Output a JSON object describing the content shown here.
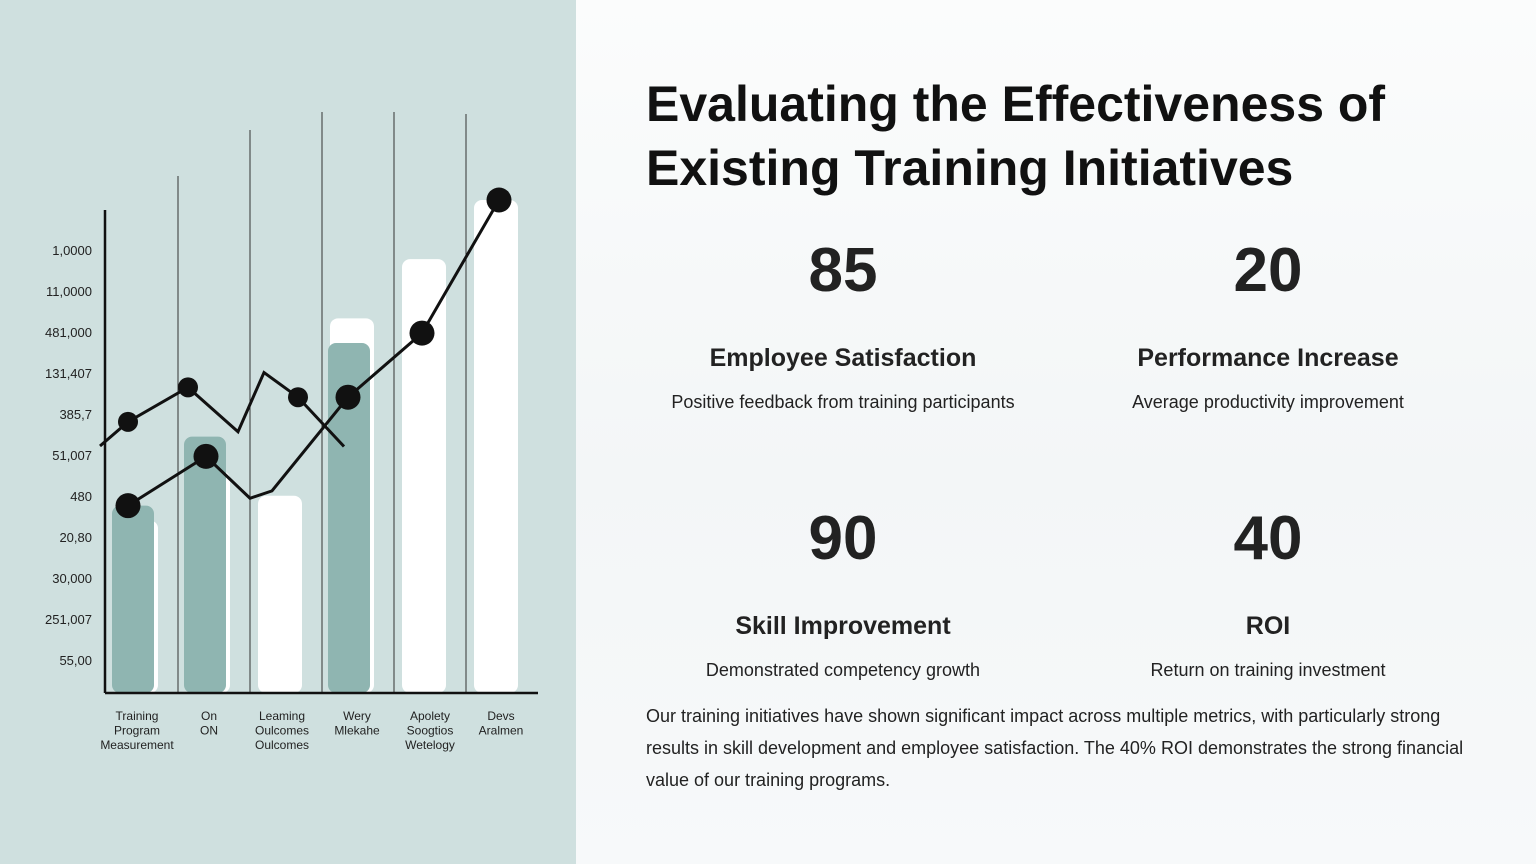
{
  "slide": {
    "title": "Evaluating the Effectiveness of Existing Training Initiatives",
    "stats": [
      {
        "value": "85",
        "label": "Employee Satisfaction",
        "description": "Positive feedback from training participants"
      },
      {
        "value": "20",
        "label": "Performance Increase",
        "description": "Average productivity improvement"
      },
      {
        "value": "90",
        "label": "Skill Improvement",
        "description": "Demonstrated competency growth"
      },
      {
        "value": "40",
        "label": "ROI",
        "description": "Return on training investment"
      }
    ],
    "summary": "Our training initiatives have shown significant impact across multiple metrics, with particularly strong results in skill development and employee satisfaction. The 40% ROI demonstrates the strong financial value of our training programs."
  },
  "colors": {
    "panel_bg": "#cfe0df",
    "bar_teal": "#8fb5b1",
    "bar_white": "#ffffff",
    "ink": "#111111"
  },
  "chart_data": {
    "type": "bar",
    "y_tick_labels": [
      "1,0000",
      "11,0000",
      "481,000",
      "131,407",
      "385,7",
      "51,007",
      "480",
      "20,80",
      "30,000",
      "251,007",
      "55,00"
    ],
    "categories": [
      [
        "Training",
        "Program",
        "Measurement"
      ],
      [
        "On",
        "ON"
      ],
      [
        "Leaming",
        "Oulcomes",
        "Oulcomes"
      ],
      [
        "Wery",
        "Mlekahe"
      ],
      [
        "Apolety",
        "Soogtios",
        "Wetelogy"
      ],
      [
        "Devs",
        "Aralmen"
      ]
    ],
    "series": [
      {
        "values": [
          0.35,
          0.45,
          0.4,
          0.76,
          0.88,
          1.0
        ]
      },
      {
        "values": [
          0.38,
          0.52,
          0.0,
          0.71,
          0.0,
          0.0
        ]
      }
    ],
    "lines": [
      {
        "values": [
          0.55,
          0.62,
          0.53,
          0.65,
          0.6,
          0.5
        ]
      },
      {
        "values": [
          0.38,
          0.48,
          0.43,
          0.6,
          0.73,
          1.0
        ]
      }
    ],
    "ylim": [
      0,
      1
    ]
  }
}
